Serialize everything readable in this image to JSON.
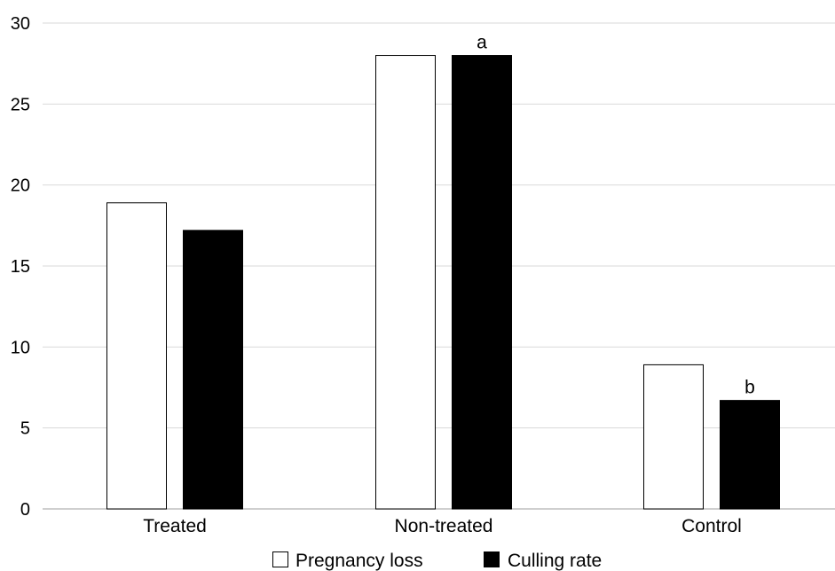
{
  "chart_data": {
    "type": "bar",
    "categories": [
      "Treated",
      "Non-treated",
      "Control"
    ],
    "series": [
      {
        "name": "Pregnancy loss",
        "values": [
          18.9,
          28.0,
          8.9
        ],
        "fill": "#ffffff",
        "stroke": "#000000"
      },
      {
        "name": "Culling rate",
        "values": [
          17.2,
          28.0,
          6.7
        ],
        "fill": "#000000",
        "stroke": "#000000"
      }
    ],
    "ylim": [
      0,
      30
    ],
    "yticks": [
      "0",
      "5",
      "10",
      "15",
      "20",
      "25",
      "30"
    ],
    "grid": true,
    "legend_position": "bottom-center",
    "annotations": [
      {
        "category": "Non-treated",
        "series": "Culling rate",
        "text": "a"
      },
      {
        "category": "Control",
        "series": "Culling rate",
        "text": "b"
      }
    ],
    "colors": {
      "grid": "#d9d9d9",
      "axis": "#bfbfbf"
    }
  }
}
